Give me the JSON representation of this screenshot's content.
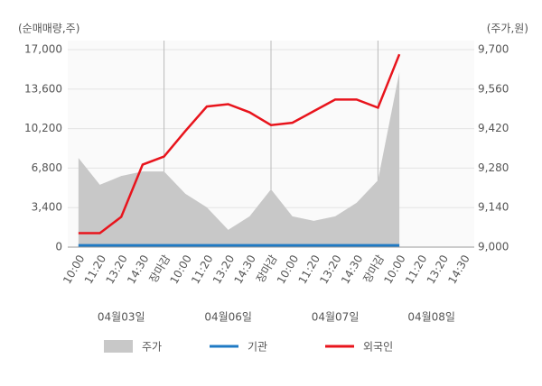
{
  "chart_data": {
    "type": "line",
    "y_label": "(순매매량,주)",
    "y2_label": "(주가,원)",
    "categories": [
      "10:00",
      "11:20",
      "13:20",
      "14:30",
      "장마감",
      "10:00",
      "11:20",
      "13:20",
      "14:30",
      "장마감",
      "10:00",
      "11:20",
      "13:20",
      "14:30",
      "장마감",
      "10:00",
      "11:20",
      "13:20",
      "14:30"
    ],
    "dates": [
      "04월03일",
      "04월06일",
      "04월07일",
      "04월08일"
    ],
    "ylim": [
      0,
      17000
    ],
    "yticks": [
      0,
      {
        "value": 3400,
        "label": "3,400"
      },
      {
        "value": 6800,
        "label": "6,800"
      },
      {
        "value": 10200,
        "label": "10,200"
      },
      {
        "value": 13600,
        "label": "13,600"
      },
      {
        "value": 17000,
        "label": "17,000"
      }
    ],
    "y2lim": [
      9000,
      9700
    ],
    "y2ticks": [
      {
        "value": 9000,
        "label": "9,000"
      },
      {
        "value": 9140,
        "label": "9,140"
      },
      {
        "value": 9280,
        "label": "9,280"
      },
      {
        "value": 9420,
        "label": "9,420"
      },
      {
        "value": 9560,
        "label": "9,560"
      },
      {
        "value": 9700,
        "label": "9,700"
      }
    ],
    "grid": true,
    "series": [
      {
        "name": "주가",
        "type": "area",
        "axis": "y2",
        "color": "#c8c8c8",
        "values": [
          9316,
          9221,
          9252,
          9268,
          9268,
          9189,
          9141,
          9061,
          9109,
          9205,
          9109,
          9093,
          9109,
          9157,
          9237,
          9620,
          null,
          null,
          null
        ]
      },
      {
        "name": "기관",
        "color": "#1f7ac4",
        "values": [
          150,
          150,
          150,
          150,
          150,
          150,
          150,
          150,
          150,
          150,
          150,
          150,
          150,
          150,
          150,
          150,
          null,
          null,
          null
        ]
      },
      {
        "name": "외국인",
        "color": "#e8141c",
        "values": [
          1200,
          1200,
          2600,
          7100,
          7800,
          10000,
          12100,
          12300,
          11600,
          10500,
          10700,
          11700,
          12700,
          12700,
          12000,
          16600,
          null,
          null,
          null
        ]
      }
    ]
  }
}
